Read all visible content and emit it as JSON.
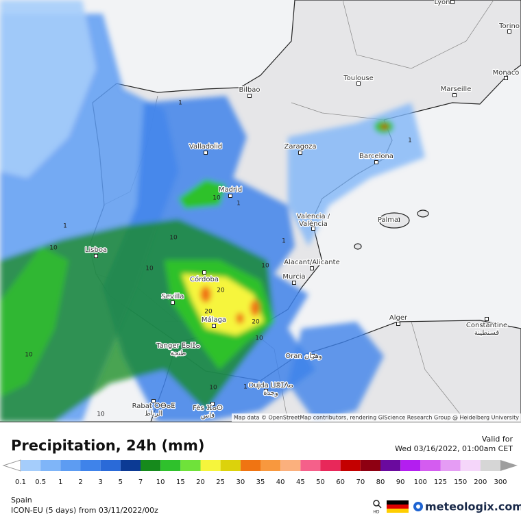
{
  "header": {
    "title": "Precipitation, 24h (mm)",
    "valid_label": "Valid for",
    "valid_time": "Wed 03/16/2022, 01:00am CET"
  },
  "legend": {
    "ticks": [
      0.1,
      0.5,
      1,
      2,
      3,
      5,
      7,
      10,
      15,
      20,
      25,
      30,
      35,
      40,
      45,
      50,
      60,
      70,
      80,
      90,
      100,
      125,
      150,
      200,
      300
    ],
    "colors": [
      "#a5cdfb",
      "#7fb5f8",
      "#5d9cf2",
      "#3f83ea",
      "#2a6ad8",
      "#0c3a94",
      "#168a1c",
      "#2fc12c",
      "#6fe23a",
      "#f6f53c",
      "#dcd20c",
      "#f07412",
      "#f8983e",
      "#fbb07d",
      "#f5608a",
      "#e8285a",
      "#c40000",
      "#8e0012",
      "#6a0a9e",
      "#b31ef0",
      "#d45cf0",
      "#e59cf4",
      "#f5d6fa",
      "#d6d6d6"
    ]
  },
  "footer": {
    "region": "Spain",
    "model": "ICON-EU (5 days) from 03/11/2022/00z",
    "hd": "HD",
    "brand": "meteologix.com"
  },
  "map": {
    "attribution": "Map data © OpenStreetMap contributors, rendering GIScience Research Group @ Heidelberg University",
    "cities": [
      {
        "lines": [
          "Lyon"
        ]
      },
      {
        "lines": [
          "Torino"
        ]
      },
      {
        "lines": [
          "Monaco"
        ]
      },
      {
        "lines": [
          "Toulouse"
        ]
      },
      {
        "lines": [
          "Marseille"
        ]
      },
      {
        "lines": [
          "Bilbao"
        ]
      },
      {
        "lines": [
          "Valladolid"
        ]
      },
      {
        "lines": [
          "Zaragoza"
        ]
      },
      {
        "lines": [
          "Barcelona"
        ]
      },
      {
        "lines": [
          "Madrid"
        ]
      },
      {
        "lines": [
          "Palma"
        ]
      },
      {
        "lines": [
          "Valencia /",
          "València"
        ]
      },
      {
        "lines": [
          "Lisboa"
        ]
      },
      {
        "lines": [
          "Alacant/Alicante"
        ]
      },
      {
        "lines": [
          "Murcia"
        ]
      },
      {
        "lines": [
          "Córdoba"
        ]
      },
      {
        "lines": [
          "Sevilla"
        ]
      },
      {
        "lines": [
          "Málaga"
        ]
      },
      {
        "lines": [
          "Alger"
        ]
      },
      {
        "lines": [
          "Constantine",
          "قسنطينة"
        ]
      },
      {
        "lines": [
          "Tanger ⵟⴰⵏⵊⴰ",
          "طنجة"
        ]
      },
      {
        "lines": [
          "Oran وهران"
        ]
      },
      {
        "lines": [
          "Oujda ⵡⴻⵊⴷⴰ",
          "وجدة"
        ]
      },
      {
        "lines": [
          "Rabat ⵔⴱⴰⵟ",
          "الرباط"
        ]
      },
      {
        "lines": [
          "Fès ⴼⴰⵙ",
          "فاس"
        ]
      }
    ],
    "contour_labels": [
      1,
      10,
      1,
      1,
      10,
      10,
      1,
      10,
      10,
      20,
      20,
      20,
      10,
      10,
      1,
      10,
      10,
      1
    ]
  }
}
